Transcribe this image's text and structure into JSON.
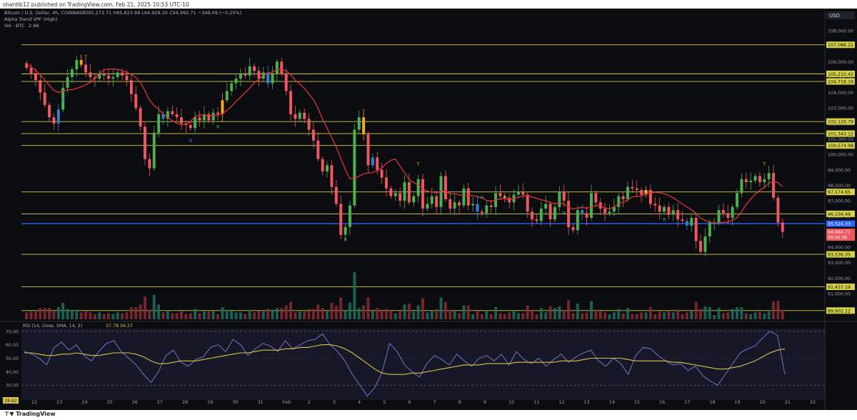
{
  "publisher": "shardib12 published on TradingView.com, Feb 21, 2025 10:53 UTC-10",
  "footer_logo": "TradingView",
  "legend": {
    "symbol": "Bitcoin / U.S. Dollar, 4h, COINBASE",
    "ohlc": "O95,273.71 H95,623.69 L94,929.20 C94,992.71 −349.09 (−0.25%)",
    "indicator_1": "Alpha Trend VPF (High)",
    "indicator_2": "Vol · BTC",
    "indicator_2_value": "2.6K",
    "rsi": "RSI (14, close, SMA, 14, 2)",
    "rsi_values": "57.78  56.27"
  },
  "colors": {
    "bg": "#0b0c10",
    "up": "#4caf50",
    "down": "#f0575f",
    "blue_candle": "#2f7fd1",
    "orange_candle": "#f5a623",
    "level_line": "#d6d248",
    "current_line": "#2962ff",
    "trend_red": "#e0303a",
    "trend_orange": "#f08a1c",
    "trend_green": "#2fa84f",
    "rsi_line": "#7e7ed8",
    "rsi_ma": "#d9c24a"
  },
  "chart_data": [
    {
      "type": "candlestick",
      "title": "Bitcoin / U.S. Dollar, 4h, COINBASE",
      "currency": "USD",
      "x_labels": [
        "22",
        "23",
        "24",
        "25",
        "26",
        "27",
        "28",
        "29",
        "30",
        "31",
        "Feb",
        "2",
        "3",
        "4",
        "5",
        "6",
        "7",
        "8",
        "9",
        "10",
        "11",
        "12",
        "13",
        "14",
        "15",
        "16",
        "17",
        "18",
        "19",
        "20",
        "21",
        "22",
        "23"
      ],
      "ylim": [
        89800,
        108600
      ],
      "y_ticks": [
        91000,
        92000,
        93000,
        94000,
        95000,
        96000,
        97000,
        98000,
        99000,
        100000,
        101000,
        102000,
        103000,
        104000,
        105000,
        106000,
        108000
      ],
      "y_tick_labels": [
        "91,000.00",
        "92,000.00",
        "93,000.00",
        "94,000.00",
        "95,000.00",
        "96,000.00",
        "97,000.00",
        "98,000.00",
        "99,000.00",
        "100,000.00",
        "101,000.00",
        "102,000.00",
        "103,000.00",
        "104,000.00",
        "105,000.00",
        "106,000.00",
        "108,000.00"
      ],
      "levels": [
        {
          "value": 107088.21,
          "label": "107,088.21"
        },
        {
          "value": 105210.42,
          "label": "105,210.42"
        },
        {
          "value": 104718.19,
          "label": "104,718.19"
        },
        {
          "value": 102126.79,
          "label": "102,126.79"
        },
        {
          "value": 101343.12,
          "label": "101,343.12"
        },
        {
          "value": 100574.98,
          "label": "100,574.98"
        },
        {
          "value": 97574.65,
          "label": "97,574.65"
        },
        {
          "value": 96156.49,
          "label": "96,156.49"
        },
        {
          "value": 93536.35,
          "label": "93,536.35"
        },
        {
          "value": 91437.19,
          "label": "91,437.19"
        },
        {
          "value": 89902.12,
          "label": "89,902.12"
        }
      ],
      "current_price": {
        "value": 95524.33,
        "label": "95,524.33"
      },
      "last_price": {
        "value": 94992.71,
        "label": "94,992.71",
        "sub_label": "00:06:38"
      },
      "closes": [
        105600,
        105200,
        104800,
        104000,
        103200,
        102400,
        102000,
        102900,
        104300,
        105000,
        105500,
        106100,
        105800,
        105300,
        105000,
        104900,
        105200,
        105100,
        104900,
        105000,
        105300,
        105100,
        104800,
        103900,
        103000,
        101800,
        99700,
        99100,
        101400,
        102600,
        102300,
        102800,
        102600,
        102400,
        102000,
        101900,
        101700,
        102400,
        102200,
        102600,
        102200,
        102700,
        102600,
        103500,
        104100,
        104600,
        104900,
        105200,
        105100,
        105700,
        105400,
        104900,
        105300,
        104600,
        105200,
        106000,
        105200,
        104100,
        102600,
        102300,
        102700,
        102300,
        101600,
        100900,
        99700,
        98900,
        99300,
        97900,
        96800,
        94800,
        95300,
        96700,
        101600,
        102400,
        101300,
        99300,
        99800,
        99000,
        98500,
        97800,
        97300,
        97500,
        97000,
        98200,
        96900,
        97300,
        98400,
        96500,
        96800,
        97300,
        96600,
        98600,
        97100,
        96500,
        96900,
        96700,
        97800,
        96700,
        96800,
        96300,
        96200,
        96700,
        96600,
        97500,
        97300,
        97200,
        96900,
        97400,
        97600,
        97400,
        96300,
        95800,
        95700,
        96500,
        96800,
        95800,
        96600,
        97600,
        97000,
        95300,
        95100,
        96400,
        96200,
        95900,
        97500,
        96900,
        96500,
        96200,
        96300,
        96600,
        97300,
        97100,
        97900,
        97800,
        97700,
        97400,
        97700,
        96800,
        96700,
        96300,
        96600,
        96100,
        96400,
        95800,
        95700,
        95400,
        95900,
        94400,
        93700,
        94700,
        95600,
        95600,
        96400,
        96200,
        95900,
        96600,
        97500,
        98400,
        98200,
        98300,
        98600,
        98200,
        98400,
        98800,
        97200,
        95600,
        94992.71
      ],
      "volume_note": "Vol · BTC 2.6K",
      "annotations": [
        {
          "text": "T"
        },
        {
          "text": "B"
        },
        {
          "text": "R"
        }
      ]
    },
    {
      "type": "line",
      "title": "RSI (14, close, SMA, 14, 2)",
      "ylim": [
        19,
        72
      ],
      "y_ticks": [
        30,
        40,
        50,
        60,
        70
      ],
      "y_tick_labels": [
        "30.00",
        "40.00",
        "50.00",
        "60.00",
        "70.00"
      ],
      "bottom_label": "19.62",
      "series": [
        {
          "name": "RSI",
          "values": [
            55,
            53,
            50,
            45,
            58,
            62,
            56,
            60,
            52,
            48,
            55,
            61,
            63,
            55,
            50,
            45,
            38,
            32,
            40,
            52,
            56,
            47,
            44,
            49,
            51,
            58,
            60,
            55,
            64,
            60,
            52,
            57,
            61,
            59,
            55,
            63,
            57,
            60,
            63,
            64,
            68,
            60,
            55,
            48,
            38,
            30,
            22,
            28,
            40,
            61,
            55,
            45,
            40,
            36,
            46,
            52,
            49,
            45,
            53,
            48,
            44,
            50,
            52,
            48,
            53,
            45,
            55,
            49,
            46,
            50,
            44,
            49,
            53,
            47,
            51,
            54,
            56,
            48,
            44,
            50,
            46,
            38,
            52,
            58,
            57,
            52,
            48,
            45,
            46,
            41,
            44,
            37,
            33,
            30,
            38,
            46,
            54,
            57,
            59,
            65,
            70,
            67,
            38
          ]
        },
        {
          "name": "RSI MA",
          "values": [
            54,
            54,
            53,
            52,
            52,
            53,
            53,
            54,
            53,
            52,
            52,
            53,
            54,
            54,
            54,
            53,
            51,
            48,
            46,
            46,
            47,
            48,
            48,
            48,
            49,
            50,
            51,
            52,
            53,
            54,
            54,
            55,
            56,
            56,
            56,
            57,
            57,
            58,
            58,
            59,
            60,
            60,
            59,
            57,
            54,
            50,
            46,
            42,
            39,
            38,
            38,
            38,
            39,
            39,
            40,
            41,
            42,
            43,
            44,
            45,
            45,
            45,
            46,
            46,
            46,
            46,
            47,
            47,
            47,
            47,
            47,
            47,
            48,
            48,
            48,
            49,
            50,
            50,
            50,
            50,
            50,
            49,
            48,
            48,
            48,
            48,
            48,
            47,
            47,
            46,
            45,
            44,
            43,
            42,
            42,
            43,
            44,
            46,
            48,
            51,
            54,
            56,
            57
          ]
        }
      ]
    }
  ]
}
